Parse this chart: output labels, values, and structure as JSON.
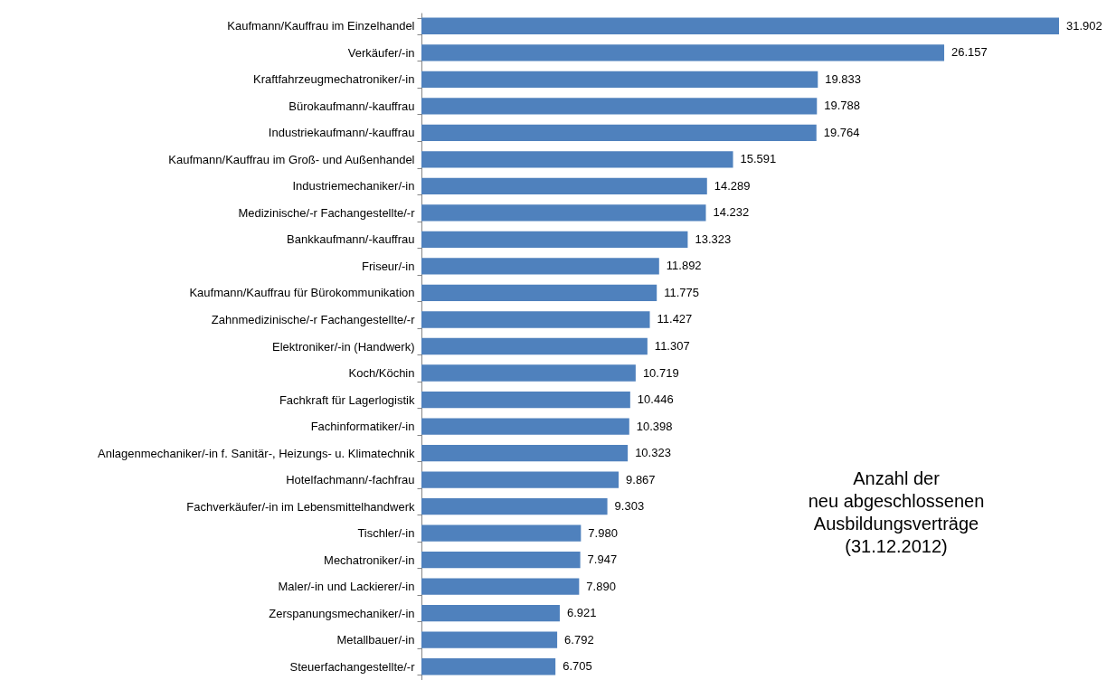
{
  "chart_data": {
    "type": "bar",
    "orientation": "horizontal",
    "categories": [
      "Kaufmann/Kauffrau im Einzelhandel",
      "Verkäufer/-in",
      "Kraftfahrzeugmechatroniker/-in",
      "Bürokaufmann/-kauffrau",
      "Industriekaufmann/-kauffrau",
      "Kaufmann/Kauffrau im Groß- und Außenhandel",
      "Industriemechaniker/-in",
      "Medizinische/-r Fachangestellte/-r",
      "Bankkaufmann/-kauffrau",
      "Friseur/-in",
      "Kaufmann/Kauffrau für Bürokommunikation",
      "Zahnmedizinische/-r Fachangestellte/-r",
      "Elektroniker/-in (Handwerk)",
      "Koch/Köchin",
      "Fachkraft für Lagerlogistik",
      "Fachinformatiker/-in",
      "Anlagenmechaniker/-in f. Sanitär-, Heizungs- u. Klimatechnik",
      "Hotelfachmann/-fachfrau",
      "Fachverkäufer/-in im Lebensmittelhandwerk",
      "Tischler/-in",
      "Mechatroniker/-in",
      "Maler/-in und Lackierer/-in",
      "Zerspanungsmechaniker/-in",
      "Metallbauer/-in",
      "Steuerfachangestellte/-r"
    ],
    "values": [
      31902,
      26157,
      19833,
      19788,
      19764,
      15591,
      14289,
      14232,
      13323,
      11892,
      11775,
      11427,
      11307,
      10719,
      10446,
      10398,
      10323,
      9867,
      9303,
      7980,
      7947,
      7890,
      6921,
      6792,
      6705
    ],
    "value_labels": [
      "31.902",
      "26.157",
      "19.833",
      "19.788",
      "19.764",
      "15.591",
      "14.289",
      "14.232",
      "13.323",
      "11.892",
      "11.775",
      "11.427",
      "11.307",
      "10.719",
      "10.446",
      "10.398",
      "10.323",
      "9.867",
      "9.303",
      "7.980",
      "7.947",
      "7.890",
      "6.921",
      "6.792",
      "6.705"
    ],
    "color": "#4f81bd",
    "annotations": [
      "Anzahl der\nneu abgeschlossenen\nAusbildungsverträge\n(31.12.2012)"
    ]
  }
}
